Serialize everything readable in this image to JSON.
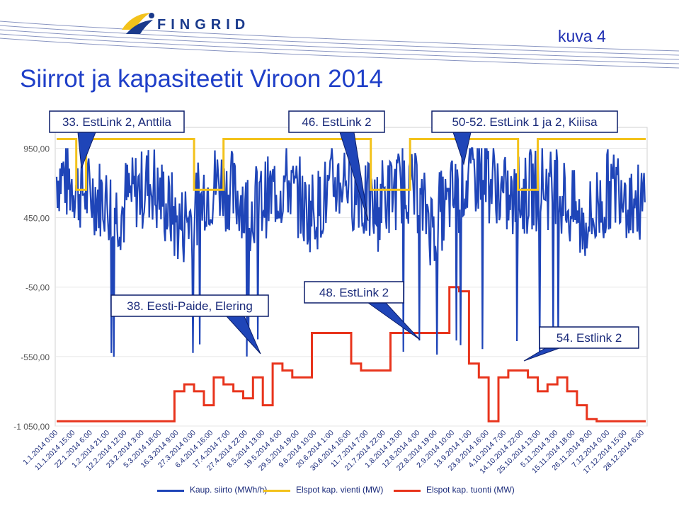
{
  "header": {
    "logo_text": "FINGRID",
    "figure_label": "kuva 4",
    "title": "Siirrot ja kapasiteetit Viroon 2014"
  },
  "colors": {
    "title": "#1f3fc8",
    "transfer_series": "#1f45b8",
    "export_series": "#f3c21b",
    "import_series": "#e8341c",
    "callout_fill": "#1f45b8",
    "callout_border": "#0d1f6b",
    "grid": "#e6e6e6"
  },
  "callouts": [
    {
      "text": "33. EstLink 2, Anttila"
    },
    {
      "text": "46. EstLink 2"
    },
    {
      "text": "50-52. EstLink 1 ja 2, Kiiisa"
    },
    {
      "text": "38. Eesti-Paide, Elering"
    },
    {
      "text": "48. EstLink 2"
    },
    {
      "text": "54. Estlink 2"
    }
  ],
  "chart_data": {
    "type": "line",
    "yticks": [
      "950,00",
      "450,00",
      "-50,00",
      "-550,00",
      "-1 050,00"
    ],
    "ylim": [
      -1050,
      1100
    ],
    "xtick_labels": [
      "1.1.2014 0:00",
      "11.1.2014 15:00",
      "22.1.2014 6:00",
      "1.2.2014 21:00",
      "12.2.2014 12:00",
      "23.2.2014 3:00",
      "5.3.2014 18:00",
      "16.3.2014 9:00",
      "27.3.2014 0:00",
      "6.4.2014 16:00",
      "17.4.2014 7:00",
      "27.4.2014 22:00",
      "8.5.2014 13:00",
      "19.5.2014 4:00",
      "29.5.2014 19:00",
      "9.6.2014 10:00",
      "20.6.2014 1:00",
      "30.6.2014 16:00",
      "11.7.2014 7:00",
      "21.7.2014 22:00",
      "1.8.2014 13:00",
      "12.8.2014 4:00",
      "22.8.2014 19:00",
      "2.9.2014 10:00",
      "13.9.2014 1:00",
      "23.9.2014 16:00",
      "4.10.2014 7:00",
      "14.10.2014 22:00",
      "25.10.2014 13:00",
      "5.11.2014 3:00",
      "15.11.2014 18:00",
      "26.11.2014 9:00",
      "7.12.2014 0:00",
      "17.12.2014 15:00",
      "28.12.2014 6:00"
    ],
    "grid": true,
    "legend_position": "bottom",
    "series": [
      {
        "name": "Kaup. siirto (MWh/h)",
        "color": "#1f45b8",
        "note_level_range": [
          -550,
          900
        ],
        "values": [
          750,
          700,
          650,
          620,
          600,
          550,
          500,
          600,
          650,
          700,
          600,
          500,
          400,
          450,
          550,
          650,
          700,
          650,
          600,
          500,
          550,
          600,
          650,
          700,
          600,
          500,
          520,
          600,
          700,
          750,
          650,
          550,
          500,
          600,
          650,
          700,
          620,
          500,
          400,
          500,
          600,
          700,
          750,
          800,
          700,
          600,
          550,
          600,
          650,
          700,
          650,
          600,
          500,
          400,
          450,
          550,
          650,
          700,
          600,
          550
        ]
      },
      {
        "name": "Elspot kap. vienti (MW)",
        "color": "#f3c21b",
        "values": [
          1016,
          1016,
          650,
          1016,
          1016,
          1016,
          1016,
          1016,
          1016,
          1016,
          1016,
          1016,
          1016,
          1016,
          650,
          650,
          650,
          1016,
          1016,
          1016,
          1016,
          1016,
          1016,
          1016,
          1016,
          1016,
          1016,
          1016,
          1016,
          1016,
          1016,
          1016,
          650,
          650,
          650,
          650,
          1016,
          1016,
          1016,
          1016,
          1016,
          1016,
          1016,
          1016,
          1016,
          1016,
          1016,
          650,
          650,
          1016,
          1016,
          1016,
          1016,
          1016,
          1016,
          1016,
          1016,
          1016,
          1016,
          1016
        ]
      },
      {
        "name": "Elspot kap. tuonti (MW)",
        "color": "#e8341c",
        "values": [
          -1016,
          -1016,
          -1016,
          -1016,
          -1016,
          -1016,
          -1016,
          -1016,
          -1016,
          -1016,
          -1016,
          -1016,
          -800,
          -750,
          -800,
          -900,
          -700,
          -750,
          -800,
          -850,
          -700,
          -900,
          -600,
          -650,
          -700,
          -700,
          -380,
          -380,
          -380,
          -380,
          -600,
          -650,
          -650,
          -650,
          -380,
          -380,
          -380,
          -380,
          -380,
          -380,
          -50,
          -80,
          -600,
          -700,
          -1016,
          -700,
          -650,
          -650,
          -700,
          -800,
          -750,
          -700,
          -800,
          -900,
          -1000,
          -1016,
          -1016,
          -1016,
          -1016,
          -1016
        ]
      }
    ]
  },
  "legend": [
    {
      "label": "Kaup. siirto (MWh/h)",
      "color": "#1f45b8"
    },
    {
      "label": "Elspot kap. vienti (MW)",
      "color": "#f3c21b"
    },
    {
      "label": "Elspot kap. tuonti (MW)",
      "color": "#e8341c"
    }
  ]
}
